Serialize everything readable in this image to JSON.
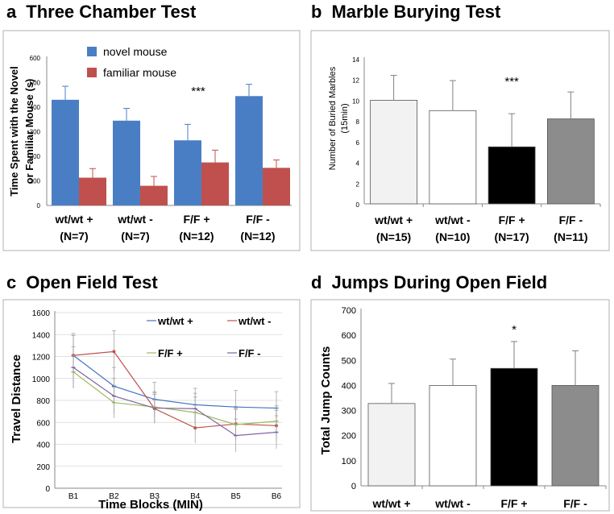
{
  "figure": {
    "colors": {
      "frame": "#b0b0b0",
      "novel": "#4a7ec4",
      "familiar": "#c0504d",
      "white_bar": "#ffffff",
      "light_bar": "#f2f2f2",
      "black_bar": "#000000",
      "gray_bar": "#8c8c8c",
      "err": "#808080",
      "grid": "#d0d0d0"
    },
    "panels": [
      {
        "letter": "a",
        "title": "Three Chamber Test"
      },
      {
        "letter": "b",
        "title": "Marble Burying Test"
      },
      {
        "letter": "c",
        "title": "Open Field Test"
      },
      {
        "letter": "d",
        "title": "Jumps During Open Field"
      }
    ]
  },
  "chart_data": [
    {
      "id": "a",
      "type": "bar",
      "title": "Three Chamber Test",
      "ylabel_lines": [
        "Time Spent with the Novel",
        "or Familiar Mouse (s)"
      ],
      "categories": [
        [
          "wt/wt +",
          "(N=7)"
        ],
        [
          "wt/wt -",
          "(N=7)"
        ],
        [
          "F/F +",
          "(N=12)"
        ],
        [
          "F/F -",
          "(N=12)"
        ]
      ],
      "series": [
        {
          "name": "novel mouse",
          "color": "#4a7ec4",
          "values": [
            430,
            345,
            265,
            445
          ],
          "errors": [
            55,
            50,
            65,
            48
          ]
        },
        {
          "name": "familiar mouse",
          "color": "#c0504d",
          "values": [
            113,
            80,
            175,
            153
          ],
          "errors": [
            37,
            38,
            50,
            32
          ]
        }
      ],
      "ylim": [
        0,
        600
      ],
      "yticks": [
        0,
        100,
        200,
        300,
        400,
        500,
        600
      ],
      "annotation": {
        "text": "***",
        "category_index": 2
      }
    },
    {
      "id": "b",
      "type": "bar",
      "title": "Marble Burying Test",
      "ylabel_lines": [
        "Number of Buried Marbles",
        "(15min)"
      ],
      "categories": [
        [
          "wt/wt +",
          "(N=15)"
        ],
        [
          "wt/wt -",
          "(N=10)"
        ],
        [
          "F/F +",
          "(N=17)"
        ],
        [
          "F/F -",
          "(N=11)"
        ]
      ],
      "values": [
        10.0,
        9.0,
        5.5,
        8.2
      ],
      "errors": [
        2.4,
        2.9,
        3.2,
        2.6
      ],
      "bar_colors": [
        "#f2f2f2",
        "#ffffff",
        "#000000",
        "#8c8c8c"
      ],
      "ylim": [
        0,
        14
      ],
      "yticks": [
        0,
        2,
        4,
        6,
        8,
        10,
        12,
        14
      ],
      "annotation": {
        "text": "***",
        "category_index": 2
      }
    },
    {
      "id": "c",
      "type": "line",
      "title": "Open Field Test",
      "xlabel": "Time  Blocks (MIN)",
      "ylabel": "Travel Distance",
      "x": [
        "B1",
        "B2",
        "B3",
        "B4",
        "B5",
        "B6"
      ],
      "series": [
        {
          "name": "wt/wt +",
          "color": "#4472c4",
          "marker": "dash",
          "values": [
            1210,
            930,
            810,
            760,
            740,
            730
          ],
          "errors": [
            200,
            170,
            155,
            150,
            150,
            150
          ]
        },
        {
          "name": "wt/wt -",
          "color": "#c0504d",
          "marker": "dot",
          "values": [
            1210,
            1245,
            725,
            550,
            585,
            570
          ],
          "errors": [
            180,
            190,
            130,
            140,
            140,
            140
          ]
        },
        {
          "name": "F/F +",
          "color": "#9bbb59",
          "marker": "dash",
          "values": [
            1060,
            780,
            740,
            690,
            580,
            610
          ],
          "errors": [
            150,
            140,
            140,
            140,
            140,
            140
          ]
        },
        {
          "name": "F/F -",
          "color": "#8064a2",
          "marker": "dash",
          "values": [
            1100,
            840,
            730,
            725,
            480,
            510
          ],
          "errors": [
            190,
            160,
            140,
            140,
            150,
            150
          ]
        }
      ],
      "ylim": [
        0,
        1600
      ],
      "yticks": [
        0,
        200,
        400,
        600,
        800,
        1000,
        1200,
        1400,
        1600
      ],
      "legend_layout": "2x2 grid, top-right"
    },
    {
      "id": "d",
      "type": "bar",
      "title": "Jumps During Open Field",
      "ylabel": "Total Jump Counts",
      "categories": [
        "wt/wt +",
        "wt/wt -",
        "F/F +",
        "F/F -"
      ],
      "values": [
        328,
        400,
        468,
        400
      ],
      "errors": [
        80,
        105,
        107,
        138
      ],
      "bar_colors": [
        "#f2f2f2",
        "#ffffff",
        "#000000",
        "#8c8c8c"
      ],
      "ylim": [
        0,
        700
      ],
      "yticks": [
        0,
        100,
        200,
        300,
        400,
        500,
        600,
        700
      ],
      "annotation": {
        "text": "*",
        "category_index": 2
      }
    }
  ]
}
